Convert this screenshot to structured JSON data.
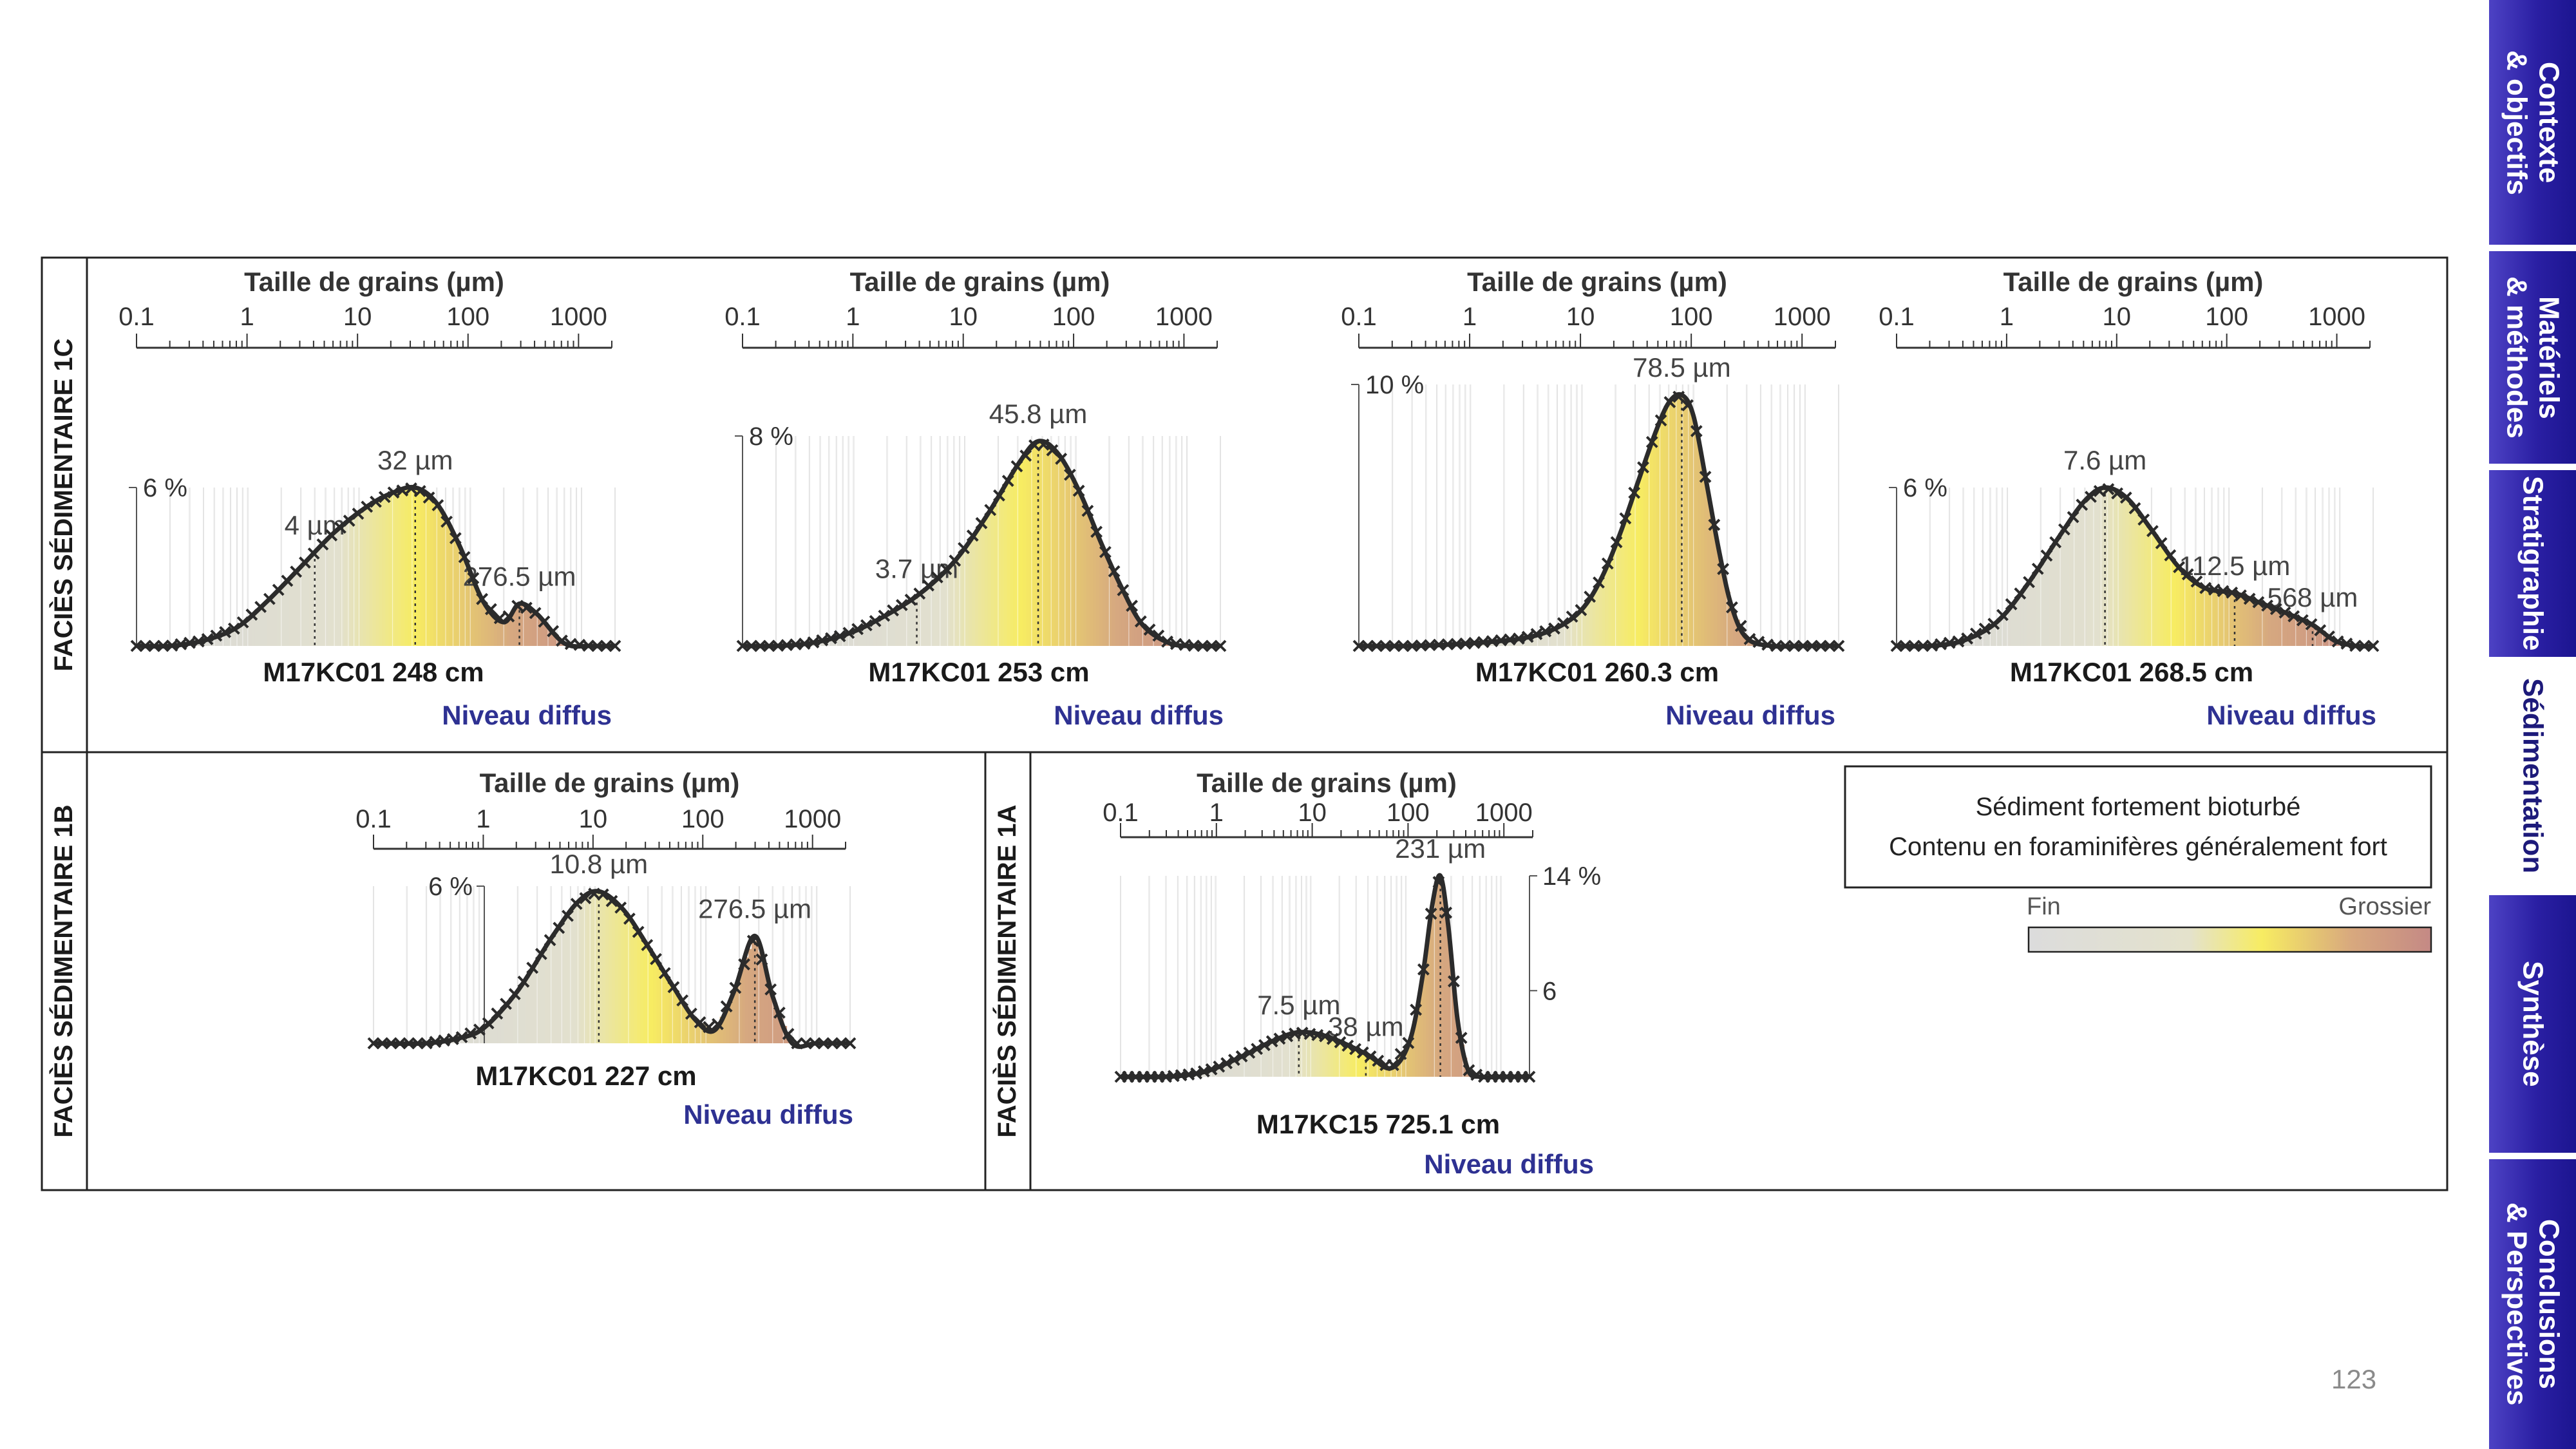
{
  "page_number": "123",
  "nav": {
    "tabs": [
      {
        "id": "contexte",
        "label": "Contexte\n& objectifs",
        "active": false
      },
      {
        "id": "materiels",
        "label": "Matériels\n& méthodes",
        "active": false
      },
      {
        "id": "stratigraphie",
        "label": "Stratigraphie",
        "active": false
      },
      {
        "id": "sedimentation",
        "label": "Sédimentation",
        "active": true
      },
      {
        "id": "synthese",
        "label": "Synthèse",
        "active": false
      },
      {
        "id": "conclusions",
        "label": "Conclusions\n& Perspectives",
        "active": false
      }
    ]
  },
  "facies": {
    "f1c": "FACIÈS SÉDIMENTAIRE 1C",
    "f1b": "FACIÈS SÉDIMENTAIRE 1B",
    "f1a": "FACIÈS SÉDIMENTAIRE 1A"
  },
  "legend": {
    "line1": "Sédiment fortement bioturbé",
    "line2": "Contenu en foraminifères généralement fort",
    "fine_label": "Fin",
    "coarse_label": "Grossier",
    "colors": {
      "fine": "#dcdcdc",
      "mid": "#f7ec62",
      "coarse": "#c48985"
    }
  },
  "colors": {
    "curve": "#2b2b2b",
    "marker": "#2b2b2b",
    "nav_blue": "#2a1fa3",
    "title_blue": "#2e3192"
  },
  "chart_data": [
    {
      "type": "area",
      "title": "M17KC01 248 cm",
      "subtitle": "Niveau diffus",
      "xlabel": "Taille de grains (µm)",
      "x_scale": "log",
      "x_tick_labels": [
        "0.1",
        "1",
        "10",
        "100",
        "1000"
      ],
      "xlim": [
        0.1,
        2000
      ],
      "ylim": [
        0,
        6
      ],
      "y_tick_labels": [
        "6 %"
      ],
      "peaks": [
        {
          "x": 32,
          "label": "32 µm"
        },
        {
          "x": 4,
          "label": "4 µm"
        },
        {
          "x": 276.5,
          "label": "276.5 µm"
        }
      ],
      "x": [
        0.1,
        0.2,
        0.4,
        0.8,
        1.5,
        3,
        6,
        12,
        20,
        32,
        50,
        80,
        130,
        200,
        276.5,
        400,
        700,
        1200,
        2000
      ],
      "values": [
        0,
        0,
        0.2,
        0.7,
        1.7,
        3.0,
        4.3,
        5.3,
        5.8,
        6.0,
        5.4,
        3.8,
        1.7,
        0.9,
        1.6,
        1.2,
        0.1,
        0,
        0
      ]
    },
    {
      "type": "area",
      "title": "M17KC01 253 cm",
      "subtitle": "Niveau diffus",
      "xlabel": "Taille de grains (µm)",
      "x_scale": "log",
      "x_tick_labels": [
        "0.1",
        "1",
        "10",
        "100",
        "1000"
      ],
      "xlim": [
        0.1,
        2000
      ],
      "ylim": [
        0,
        8
      ],
      "y_tick_labels": [
        "8 %"
      ],
      "peaks": [
        {
          "x": 45.8,
          "label": "45.8 µm"
        },
        {
          "x": 3.7,
          "label": "3.7 µm"
        }
      ],
      "x": [
        0.1,
        0.2,
        0.4,
        0.8,
        1.5,
        3.7,
        8,
        16,
        30,
        45.8,
        70,
        110,
        170,
        260,
        400,
        700,
        1200,
        2000
      ],
      "values": [
        0,
        0,
        0.1,
        0.4,
        0.9,
        1.9,
        3.2,
        5.0,
        6.9,
        7.8,
        7.3,
        5.8,
        3.9,
        2.2,
        0.8,
        0.1,
        0,
        0
      ]
    },
    {
      "type": "area",
      "title": "M17KC01 260.3 cm",
      "subtitle": "Niveau diffus",
      "xlabel": "Taille de grains (µm)",
      "x_scale": "log",
      "x_tick_labels": [
        "0.1",
        "1",
        "10",
        "100",
        "1000"
      ],
      "xlim": [
        0.1,
        2000
      ],
      "ylim": [
        0,
        10
      ],
      "y_tick_labels": [
        "10 %"
      ],
      "peaks": [
        {
          "x": 78.5,
          "label": "78.5 µm"
        }
      ],
      "x": [
        0.1,
        0.3,
        1,
        3,
        6,
        10,
        15,
        22,
        32,
        45,
        60,
        78.5,
        100,
        130,
        170,
        220,
        300,
        500,
        1000,
        2000
      ],
      "values": [
        0,
        0,
        0.1,
        0.3,
        0.7,
        1.4,
        2.6,
        4.3,
        6.3,
        8.1,
        9.3,
        9.6,
        8.8,
        6.3,
        3.6,
        1.5,
        0.3,
        0,
        0,
        0
      ]
    },
    {
      "type": "area",
      "title": "M17KC01 268.5 cm",
      "subtitle": "Niveau diffus",
      "xlabel": "Taille de grains (µm)",
      "x_scale": "log",
      "x_tick_labels": [
        "0.1",
        "1",
        "10",
        "100",
        "1000"
      ],
      "xlim": [
        0.1,
        2000
      ],
      "ylim": [
        0,
        6
      ],
      "y_tick_labels": [
        "6 %"
      ],
      "peaks": [
        {
          "x": 7.6,
          "label": "7.6 µm"
        },
        {
          "x": 112.5,
          "label": "112.5 µm"
        },
        {
          "x": 568,
          "label": "568 µm"
        }
      ],
      "x": [
        0.1,
        0.2,
        0.4,
        0.8,
        1.5,
        3,
        5,
        7.6,
        12,
        20,
        35,
        60,
        112.5,
        200,
        350,
        568,
        900,
        1400,
        2000
      ],
      "values": [
        0,
        0,
        0.2,
        0.9,
        2.3,
        4.2,
        5.5,
        6.0,
        5.6,
        4.4,
        3.0,
        2.2,
        2.0,
        1.6,
        1.2,
        0.8,
        0.2,
        0,
        0
      ]
    },
    {
      "type": "area",
      "title": "M17KC01 227 cm",
      "subtitle": "Niveau diffus",
      "xlabel": "Taille de grains (µm)",
      "x_scale": "log",
      "x_tick_labels": [
        "0.1",
        "1",
        "10",
        "100",
        "1000"
      ],
      "xlim": [
        0.1,
        2000
      ],
      "ylim": [
        0,
        6
      ],
      "y_tick_labels": [
        "6 %"
      ],
      "peaks": [
        {
          "x": 10.8,
          "label": "10.8 µm"
        },
        {
          "x": 276.5,
          "label": "276.5 µm"
        }
      ],
      "x": [
        0.1,
        0.3,
        0.6,
        1,
        2,
        4,
        7,
        10.8,
        18,
        30,
        50,
        80,
        120,
        180,
        276.5,
        400,
        600,
        1000,
        2000
      ],
      "values": [
        0,
        0,
        0.2,
        0.6,
        2.0,
        4.0,
        5.4,
        5.8,
        5.1,
        3.7,
        2.2,
        0.9,
        0.5,
        2.0,
        4.1,
        1.8,
        0,
        0,
        0
      ]
    },
    {
      "type": "area",
      "title": "M17KC15 725.1 cm",
      "subtitle": "Niveau diffus",
      "xlabel": "Taille de grains (µm)",
      "x_scale": "log",
      "x_tick_labels": [
        "0.1",
        "1",
        "10",
        "100",
        "1000"
      ],
      "xlim": [
        0.1,
        2000
      ],
      "ylim": [
        0,
        14
      ],
      "y_tick_labels": [
        "14 %",
        "6"
      ],
      "peaks": [
        {
          "x": 231,
          "label": "231 µm"
        },
        {
          "x": 38,
          "label": "38 µm"
        },
        {
          "x": 7.5,
          "label": "7.5 µm"
        }
      ],
      "x": [
        0.1,
        0.3,
        0.6,
        1,
        2,
        4,
        7.5,
        15,
        38,
        70,
        110,
        150,
        190,
        231,
        280,
        350,
        450,
        600,
        1000,
        2000
      ],
      "values": [
        0,
        0,
        0.2,
        0.6,
        1.5,
        2.5,
        3.1,
        2.8,
        1.6,
        0.6,
        2.5,
        7.0,
        12.0,
        14.0,
        10.5,
        4.0,
        0.5,
        0,
        0,
        0
      ]
    }
  ]
}
